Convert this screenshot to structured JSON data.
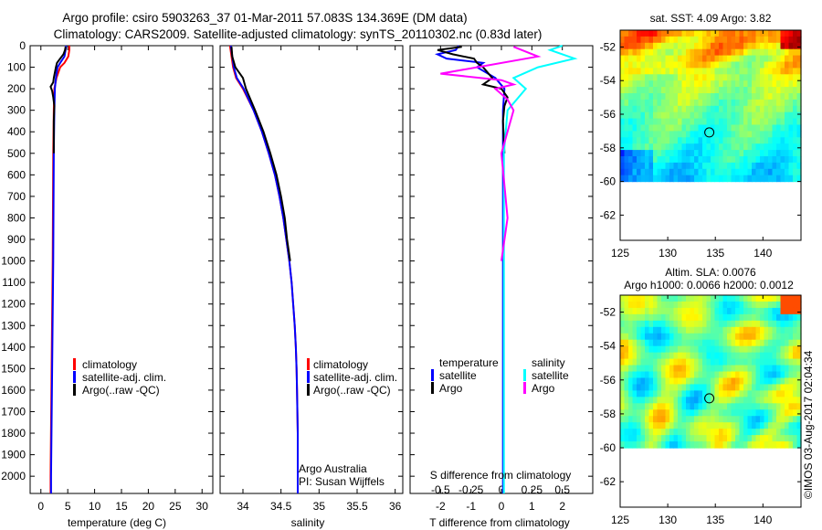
{
  "header": {
    "title_line1": "Argo profile: csiro 5903263_37 01-Mar-2011 57.083S 134.369E (DM data)",
    "title_line2": "Climatology: CARS2009. Satellite-adjusted climatology: synTS_20110302.nc (0.83d later)"
  },
  "credit": "©IMOS 03-Aug-2017 02:04:34",
  "colors": {
    "red": "#ff0000",
    "blue": "#0000ff",
    "black": "#000000",
    "cyan": "#00ffff",
    "magenta": "#ff00ff"
  },
  "chart_data": [
    {
      "type": "line",
      "id": "temperature",
      "xlabel": "temperature (deg C)",
      "ylabel": "",
      "xlim": [
        -2,
        32
      ],
      "ylim": [
        2080,
        0
      ],
      "xticks": [
        0,
        5,
        10,
        15,
        20,
        25,
        30
      ],
      "yticks": [
        0,
        100,
        200,
        300,
        400,
        500,
        600,
        700,
        800,
        900,
        1000,
        1100,
        1200,
        1300,
        1400,
        1500,
        1600,
        1700,
        1800,
        1900,
        2000
      ],
      "legend": [
        "climatology",
        "satellite-adj. clim.",
        "Argo(..raw -QC)"
      ],
      "series": [
        {
          "name": "climatology",
          "color": "red",
          "depth": [
            0,
            20,
            50,
            80,
            100,
            150,
            200,
            300,
            500,
            1000,
            1500,
            2000,
            2080
          ],
          "values": [
            5.3,
            5.3,
            5.1,
            4.4,
            3.6,
            2.9,
            2.5,
            2.4,
            2.3,
            2.2,
            2.0,
            1.8,
            1.8
          ]
        },
        {
          "name": "satellite-adj. clim.",
          "color": "blue",
          "depth": [
            0,
            20,
            50,
            80,
            100,
            150,
            200,
            300,
            500,
            1000,
            1500,
            2000,
            2080
          ],
          "values": [
            4.7,
            4.6,
            4.4,
            3.6,
            3.1,
            2.8,
            2.6,
            2.5,
            2.4,
            2.3,
            2.1,
            1.9,
            1.9
          ]
        },
        {
          "name": "Argo(..raw -QC)",
          "color": "black",
          "depth": [
            5,
            20,
            40,
            60,
            80,
            100,
            150,
            170,
            190,
            210,
            240,
            280,
            350,
            500
          ],
          "values": [
            4.6,
            4.5,
            4.2,
            3.6,
            3.0,
            2.8,
            2.4,
            2.3,
            1.8,
            2.1,
            2.3,
            2.5,
            2.4,
            2.4
          ]
        }
      ]
    },
    {
      "type": "line",
      "id": "salinity",
      "xlabel": "salinity",
      "xlim": [
        33.7,
        36.1
      ],
      "ylim": [
        2080,
        0
      ],
      "xticks": [
        34,
        34.5,
        35,
        35.5,
        36
      ],
      "legend": [
        "climatology",
        "satellite-adj. clim.",
        "Argo(..raw -QC)"
      ],
      "annotation": [
        "Argo Australia",
        "PI: Susan Wijffels"
      ],
      "series": [
        {
          "name": "climatology",
          "color": "red",
          "depth": [
            0,
            50,
            100,
            150,
            200,
            300,
            400,
            500,
            600,
            700,
            800,
            900,
            1000,
            1100,
            1200,
            1300,
            1400,
            1500,
            1600,
            1800,
            2000,
            2080
          ],
          "values": [
            33.83,
            33.85,
            33.87,
            33.91,
            34.0,
            34.14,
            34.25,
            34.34,
            34.42,
            34.48,
            34.53,
            34.57,
            34.61,
            34.64,
            34.66,
            34.68,
            34.695,
            34.705,
            34.71,
            34.72,
            34.72,
            34.72
          ]
        },
        {
          "name": "satellite-adj. clim.",
          "color": "blue",
          "depth": [
            0,
            50,
            100,
            150,
            200,
            300,
            400,
            500,
            600,
            700,
            800,
            900,
            1000,
            1100,
            1200,
            1300,
            1400,
            1500,
            1600,
            1800,
            2000,
            2080
          ],
          "values": [
            33.84,
            33.86,
            33.88,
            33.92,
            34.01,
            34.14,
            34.25,
            34.34,
            34.42,
            34.48,
            34.53,
            34.57,
            34.61,
            34.64,
            34.66,
            34.68,
            34.695,
            34.705,
            34.71,
            34.72,
            34.72,
            34.72
          ]
        },
        {
          "name": "Argo(..raw -QC)",
          "color": "black",
          "depth": [
            5,
            50,
            100,
            150,
            200,
            300,
            400,
            500,
            600,
            700,
            800,
            900,
            1000
          ],
          "values": [
            33.85,
            33.86,
            33.9,
            34.0,
            34.04,
            34.16,
            34.27,
            34.36,
            34.44,
            34.5,
            34.55,
            34.58,
            34.62
          ]
        }
      ]
    },
    {
      "type": "line",
      "id": "differences",
      "xlabel": "T difference from climatology",
      "xlabel2": "S difference from climatology",
      "xlim": [
        -3,
        3
      ],
      "ylim": [
        2080,
        0
      ],
      "xticks_T": [
        -2,
        -1,
        0,
        1,
        2
      ],
      "xticks_S": [
        -0.5,
        -0.25,
        0,
        0.25,
        0.5
      ],
      "legend": {
        "temperature_label": "temperature",
        "salinity_label": "salinity",
        "items": [
          "satellite",
          "Argo",
          "satellite",
          "Argo"
        ]
      },
      "series": [
        {
          "name": "T satellite",
          "color": "blue",
          "depth": [
            0,
            20,
            40,
            60,
            80,
            100,
            150,
            200,
            300,
            500,
            1000,
            1500,
            2000,
            2080
          ],
          "values": [
            -1.4,
            -1.5,
            -2.1,
            -1.8,
            -0.6,
            -0.8,
            -0.2,
            0.1,
            0.05,
            0.05,
            0.05,
            0.05,
            0.05,
            0.05
          ]
        },
        {
          "name": "T Argo",
          "color": "black",
          "depth": [
            5,
            20,
            40,
            60,
            80,
            100,
            150,
            180,
            200,
            240,
            280,
            350,
            500
          ],
          "values": [
            -1.3,
            -2.1,
            -1.6,
            -0.9,
            -0.8,
            -0.6,
            -0.3,
            -0.6,
            0.0,
            0.2,
            0.1,
            0.05,
            0.1
          ]
        },
        {
          "name": "S satellite",
          "color": "cyan",
          "depth": [
            0,
            20,
            60,
            100,
            150,
            200,
            300,
            500,
            1000,
            1500,
            2000,
            2080
          ],
          "values": [
            0.5,
            0.4,
            0.6,
            0.3,
            0.1,
            0.2,
            0.05,
            0.02,
            0.02,
            0.02,
            0.02,
            0.02
          ]
        },
        {
          "name": "S Argo",
          "color": "magenta",
          "depth": [
            5,
            50,
            100,
            130,
            160,
            180,
            200,
            250,
            300,
            500,
            800,
            1000
          ],
          "values": [
            0.1,
            0.3,
            -0.2,
            -0.5,
            0.0,
            0.1,
            -0.05,
            0.05,
            0.1,
            0.0,
            0.05,
            0.0
          ]
        }
      ]
    },
    {
      "type": "heatmap",
      "id": "sst_map",
      "title": "sat. SST: 4.09 Argo: 3.82",
      "xlim": [
        125,
        144
      ],
      "ylim": [
        -63.5,
        -51
      ],
      "xticks": [
        125,
        130,
        135,
        140
      ],
      "yticks": [
        -52,
        -54,
        -56,
        -58,
        -60,
        -62
      ],
      "data_extent_lat": [
        -60,
        -51
      ],
      "marker": {
        "lon": 134.369,
        "lat": -57.083
      }
    },
    {
      "type": "heatmap",
      "id": "sla_map",
      "title_line1": "Altim. SLA: 0.0076",
      "title_line2": "Argo h1000: 0.0066 h2000: 0.0012",
      "xlim": [
        125,
        144
      ],
      "ylim": [
        -63.5,
        -51
      ],
      "xticks": [
        125,
        130,
        135,
        140
      ],
      "yticks": [
        -52,
        -54,
        -56,
        -58,
        -60,
        -62
      ],
      "data_extent_lat": [
        -60,
        -51
      ],
      "marker": {
        "lon": 134.369,
        "lat": -57.083
      }
    }
  ]
}
